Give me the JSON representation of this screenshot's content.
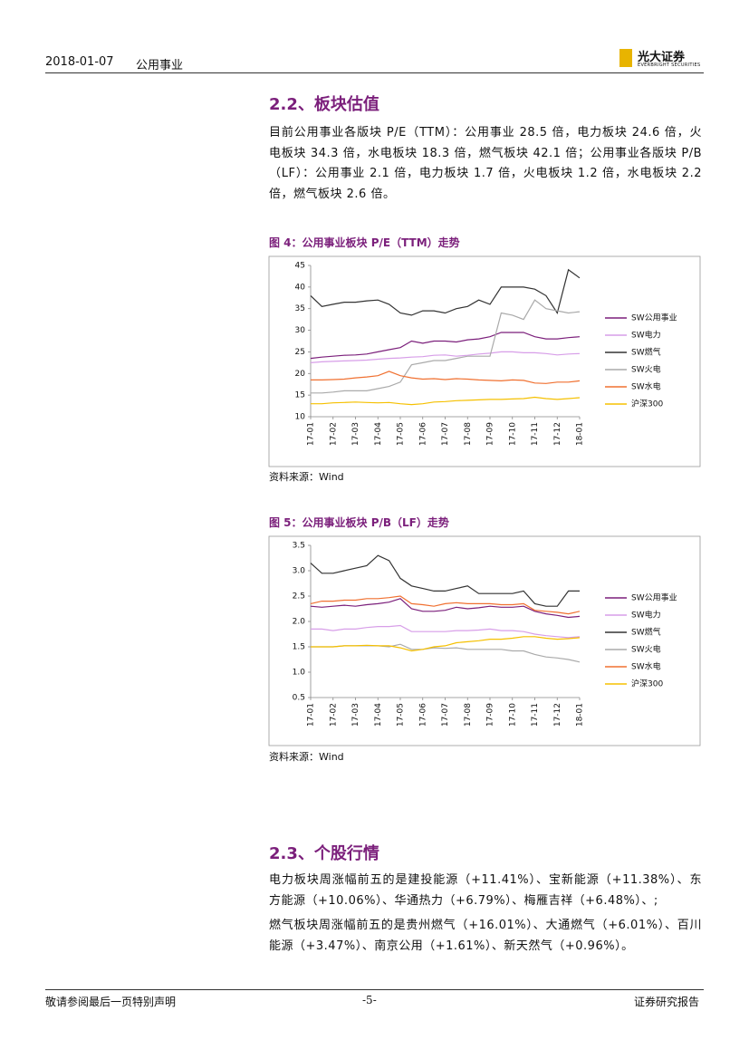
{
  "header": {
    "date": "2018-01-07",
    "industry": "公用事业",
    "logo_name": "光大证券",
    "logo_sub": "EVERBRIGHT SECURITIES"
  },
  "section1": {
    "heading": "2.2、板块估值",
    "paragraph": "目前公用事业各版块 P/E（TTM）：公用事业 28.5 倍，电力板块 24.6 倍，火电板块 34.3 倍，水电板块 18.3 倍，燃气板块 42.1 倍；公用事业各版块 P/B（LF）：公用事业 2.1 倍，电力板块 1.7 倍，火电板块 1.2 倍，水电板块 2.2 倍，燃气板块 2.6 倍。"
  },
  "chart_data": [
    {
      "type": "line",
      "title": "图 4：公用事业板块 P/E（TTM）走势",
      "source": "资料来源：Wind",
      "categories": [
        "17-01",
        null,
        "17-02",
        null,
        "17-03",
        null,
        "17-04",
        null,
        "17-05",
        null,
        "17-06",
        null,
        "17-07",
        null,
        "17-08",
        null,
        "17-09",
        null,
        "17-10",
        null,
        "17-11",
        null,
        "17-12",
        null,
        "18-01"
      ],
      "ylim": [
        10,
        45
      ],
      "yticks": [
        10,
        15,
        20,
        25,
        30,
        35,
        40,
        45
      ],
      "series": [
        {
          "name": "SW公用事业",
          "color": "#7b1f7b",
          "values": [
            23.5,
            23.8,
            24,
            24.2,
            24.3,
            24.5,
            25,
            25.5,
            26,
            27.5,
            27,
            27.5,
            27.5,
            27.3,
            27.8,
            28,
            28.5,
            29.5,
            29.5,
            29.5,
            28.5,
            28,
            28,
            28.3,
            28.5
          ]
        },
        {
          "name": "SW电力",
          "color": "#d79ee8",
          "values": [
            22.5,
            22.7,
            22.8,
            22.9,
            23,
            23.1,
            23.3,
            23.5,
            23.6,
            23.8,
            23.9,
            24.2,
            24.3,
            24,
            24.2,
            24.5,
            24.7,
            25,
            25,
            24.8,
            24.8,
            24.6,
            24.3,
            24.5,
            24.6
          ]
        },
        {
          "name": "SW燃气",
          "color": "#333333",
          "values": [
            38,
            35.5,
            36,
            36.5,
            36.5,
            36.8,
            37,
            36,
            34,
            33.5,
            34.5,
            34.5,
            34,
            35,
            35.5,
            37,
            36,
            40,
            40,
            40,
            39.5,
            38,
            34,
            44,
            42.1
          ]
        },
        {
          "name": "SW火电",
          "color": "#aaaaaa",
          "values": [
            15.5,
            15.5,
            15.7,
            16,
            16,
            16,
            16.5,
            17,
            18,
            22,
            22.5,
            23,
            23,
            23.5,
            24,
            24,
            24,
            34,
            33.5,
            32.5,
            37,
            35,
            34.5,
            34,
            34.3
          ]
        },
        {
          "name": "SW水电",
          "color": "#f07030",
          "values": [
            18.5,
            18.5,
            18.6,
            18.7,
            19,
            19.2,
            19.5,
            20.5,
            19.5,
            19,
            18.7,
            18.8,
            18.6,
            18.8,
            18.7,
            18.5,
            18.4,
            18.3,
            18.5,
            18.4,
            17.8,
            17.7,
            18,
            18,
            18.3
          ]
        },
        {
          "name": "沪深300",
          "color": "#f5c000",
          "values": [
            13,
            13,
            13.2,
            13.3,
            13.4,
            13.3,
            13.2,
            13.3,
            13,
            12.8,
            13,
            13.4,
            13.5,
            13.7,
            13.8,
            13.9,
            14,
            14,
            14.1,
            14.2,
            14.5,
            14.2,
            14,
            14.2,
            14.4
          ]
        }
      ]
    },
    {
      "type": "line",
      "title": "图 5：公用事业板块 P/B（LF）走势",
      "source": "资料来源：Wind",
      "categories": [
        "17-01",
        null,
        "17-02",
        null,
        "17-03",
        null,
        "17-04",
        null,
        "17-05",
        null,
        "17-06",
        null,
        "17-07",
        null,
        "17-08",
        null,
        "17-09",
        null,
        "17-10",
        null,
        "17-11",
        null,
        "17-12",
        null,
        "18-01"
      ],
      "ylim": [
        0.5,
        3.5
      ],
      "yticks": [
        0.5,
        {
          "value": 1,
          "label": "1.0"
        },
        1.5,
        {
          "value": 2,
          "label": "2.0"
        },
        2.5,
        {
          "value": 3,
          "label": "3.0"
        },
        3.5
      ],
      "series": [
        {
          "name": "SW公用事业",
          "color": "#7b1f7b",
          "values": [
            2.3,
            2.28,
            2.3,
            2.32,
            2.3,
            2.33,
            2.35,
            2.38,
            2.45,
            2.25,
            2.2,
            2.2,
            2.22,
            2.28,
            2.25,
            2.27,
            2.3,
            2.28,
            2.28,
            2.3,
            2.2,
            2.15,
            2.12,
            2.08,
            2.1
          ]
        },
        {
          "name": "SW电力",
          "color": "#d79ee8",
          "values": [
            1.85,
            1.85,
            1.82,
            1.85,
            1.85,
            1.88,
            1.9,
            1.9,
            1.92,
            1.8,
            1.8,
            1.8,
            1.8,
            1.82,
            1.82,
            1.83,
            1.85,
            1.82,
            1.82,
            1.8,
            1.75,
            1.72,
            1.7,
            1.68,
            1.7
          ]
        },
        {
          "name": "SW燃气",
          "color": "#333333",
          "values": [
            3.15,
            2.95,
            2.95,
            3.0,
            3.05,
            3.1,
            3.3,
            3.2,
            2.85,
            2.7,
            2.65,
            2.6,
            2.6,
            2.65,
            2.7,
            2.55,
            2.55,
            2.55,
            2.55,
            2.6,
            2.35,
            2.3,
            2.3,
            2.6,
            2.6
          ]
        },
        {
          "name": "SW火电",
          "color": "#aaaaaa",
          "values": [
            1.5,
            1.5,
            1.5,
            1.52,
            1.52,
            1.52,
            1.52,
            1.5,
            1.55,
            1.45,
            1.45,
            1.48,
            1.47,
            1.48,
            1.45,
            1.45,
            1.45,
            1.45,
            1.42,
            1.42,
            1.35,
            1.3,
            1.28,
            1.25,
            1.2
          ]
        },
        {
          "name": "SW水电",
          "color": "#f07030",
          "values": [
            2.35,
            2.4,
            2.4,
            2.42,
            2.42,
            2.45,
            2.45,
            2.47,
            2.5,
            2.35,
            2.33,
            2.3,
            2.35,
            2.37,
            2.35,
            2.35,
            2.35,
            2.33,
            2.33,
            2.35,
            2.22,
            2.2,
            2.18,
            2.15,
            2.2
          ]
        },
        {
          "name": "沪深300",
          "color": "#f5c000",
          "values": [
            1.5,
            1.5,
            1.5,
            1.52,
            1.52,
            1.53,
            1.52,
            1.52,
            1.48,
            1.42,
            1.45,
            1.5,
            1.52,
            1.58,
            1.6,
            1.62,
            1.65,
            1.65,
            1.67,
            1.7,
            1.7,
            1.67,
            1.65,
            1.66,
            1.68
          ]
        }
      ]
    }
  ],
  "section2": {
    "heading": "2.3、个股行情",
    "paragraphs": [
      "电力板块周涨幅前五的是建投能源（+11.41%）、宝新能源（+11.38%）、东方能源（+10.06%）、华通热力（+6.79%）、梅雁吉祥（+6.48%）、;",
      "燃气板块周涨幅前五的是贵州燃气（+16.01%）、大通燃气（+6.01%）、百川能源（+3.47%）、南京公用（+1.61%）、新天然气（+0.96%）。"
    ]
  },
  "footer": {
    "left": "敬请参阅最后一页特别声明",
    "center": "-5-",
    "right": "证券研究报告"
  }
}
